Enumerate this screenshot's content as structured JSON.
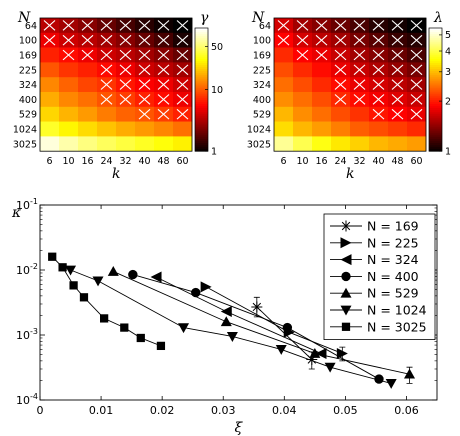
{
  "chart_data": [
    {
      "type": "heatmap",
      "title": "",
      "xlabel": "k",
      "ylabel": "N",
      "colorbar_label": "γ",
      "colorbar_scale": "log",
      "colorbar_range": [
        1,
        100
      ],
      "colorbar_ticks": [
        "1",
        "10",
        "50"
      ],
      "colormap": "hot",
      "x_categories": [
        "6",
        "10",
        "16",
        "24",
        "32",
        "40",
        "48",
        "60"
      ],
      "y_categories": [
        "64",
        "100",
        "169",
        "225",
        "324",
        "400",
        "529",
        "1024",
        "3025"
      ],
      "values": [
        [
          3.5,
          3,
          2.5,
          2,
          1.6,
          1.3,
          1.1,
          1
        ],
        [
          5,
          4,
          3.5,
          3,
          2.5,
          2,
          1.6,
          1.2
        ],
        [
          7,
          6,
          5,
          4,
          3.5,
          3,
          2.5,
          2
        ],
        [
          10,
          8,
          7,
          6,
          5,
          4,
          3.5,
          3
        ],
        [
          14,
          11,
          9,
          8,
          6.5,
          5.5,
          5,
          4
        ],
        [
          18,
          14,
          12,
          10,
          8.5,
          7,
          6,
          5
        ],
        [
          24,
          19,
          16,
          13,
          11,
          10,
          8.5,
          7
        ],
        [
          38,
          30,
          25,
          21,
          18,
          16,
          14,
          12
        ],
        [
          85,
          68,
          56,
          48,
          42,
          37,
          33,
          29
        ]
      ],
      "crossed": [
        [
          1,
          1,
          1,
          1,
          1,
          1,
          1,
          1
        ],
        [
          1,
          1,
          1,
          1,
          1,
          1,
          1,
          1
        ],
        [
          0,
          1,
          1,
          1,
          1,
          1,
          1,
          1
        ],
        [
          0,
          0,
          0,
          1,
          1,
          1,
          1,
          1
        ],
        [
          0,
          0,
          0,
          1,
          1,
          1,
          1,
          1
        ],
        [
          0,
          0,
          0,
          1,
          1,
          1,
          1,
          1
        ],
        [
          0,
          0,
          0,
          0,
          0,
          1,
          1,
          1
        ],
        [
          0,
          0,
          0,
          0,
          0,
          0,
          0,
          0
        ],
        [
          0,
          0,
          0,
          0,
          0,
          0,
          0,
          0
        ]
      ]
    },
    {
      "type": "heatmap",
      "title": "",
      "xlabel": "k",
      "ylabel": "N",
      "colorbar_label": "λ",
      "colorbar_scale": "log",
      "colorbar_range": [
        1,
        5.5
      ],
      "colorbar_ticks": [
        "1",
        "2",
        "3",
        "4",
        "5"
      ],
      "colormap": "hot",
      "x_categories": [
        "6",
        "10",
        "16",
        "24",
        "32",
        "40",
        "48",
        "60"
      ],
      "y_categories": [
        "64",
        "100",
        "169",
        "225",
        "324",
        "400",
        "529",
        "1024",
        "3025"
      ],
      "values": [
        [
          1.7,
          1.5,
          1.4,
          1.3,
          1.2,
          1.1,
          1.05,
          1
        ],
        [
          1.9,
          1.7,
          1.6,
          1.5,
          1.35,
          1.25,
          1.15,
          1.1
        ],
        [
          2.1,
          1.9,
          1.8,
          1.65,
          1.5,
          1.4,
          1.3,
          1.2
        ],
        [
          2.3,
          2.1,
          1.95,
          1.8,
          1.65,
          1.55,
          1.45,
          1.35
        ],
        [
          2.5,
          2.3,
          2.1,
          1.95,
          1.8,
          1.7,
          1.6,
          1.5
        ],
        [
          2.7,
          2.5,
          2.3,
          2.1,
          1.95,
          1.85,
          1.75,
          1.65
        ],
        [
          3,
          2.7,
          2.5,
          2.3,
          2.15,
          2,
          1.9,
          1.8
        ],
        [
          3.3,
          3,
          2.8,
          2.6,
          2.4,
          2.3,
          2.2,
          2.1
        ],
        [
          4.6,
          4.1,
          3.7,
          3.4,
          3.2,
          3,
          2.9,
          2.8
        ]
      ],
      "crossed": [
        [
          1,
          1,
          1,
          1,
          1,
          1,
          1,
          1
        ],
        [
          1,
          1,
          1,
          1,
          1,
          1,
          1,
          1
        ],
        [
          0,
          1,
          1,
          1,
          1,
          1,
          1,
          1
        ],
        [
          0,
          0,
          0,
          1,
          1,
          1,
          1,
          1
        ],
        [
          0,
          0,
          0,
          1,
          1,
          1,
          1,
          1
        ],
        [
          0,
          0,
          0,
          1,
          1,
          1,
          1,
          1
        ],
        [
          0,
          0,
          0,
          0,
          0,
          1,
          1,
          1
        ],
        [
          0,
          0,
          0,
          0,
          0,
          0,
          0,
          0
        ],
        [
          0,
          0,
          0,
          0,
          0,
          0,
          0,
          0
        ]
      ]
    },
    {
      "type": "line",
      "title": "",
      "xlabel": "ξ",
      "ylabel": "κ",
      "xlim": [
        0,
        0.065
      ],
      "ylim": [
        0.0001,
        0.1
      ],
      "yscale": "log",
      "grid": false,
      "legend_position": "top-right",
      "x_ticks": [
        "0",
        "0.01",
        "0.02",
        "0.03",
        "0.04",
        "0.05",
        "0.06"
      ],
      "y_tick_values": [
        0.0001,
        0.001,
        0.01,
        0.1
      ],
      "y_tick_labels": [
        {
          "base": "10",
          "exp": "-4"
        },
        {
          "base": "10",
          "exp": "-3"
        },
        {
          "base": "10",
          "exp": "-2"
        },
        {
          "base": "10",
          "exp": "-1"
        }
      ],
      "series": [
        {
          "name": "N = 169",
          "marker": "asterisk",
          "x": [
            0.0355,
            0.0445
          ],
          "y": [
            0.0027,
            0.00042
          ],
          "err": [
            [
              0.0355,
              0.0019,
              0.0038
            ],
            [
              0.0445,
              0.0003,
              0.00055
            ]
          ]
        },
        {
          "name": "N = 225",
          "marker": "triangle-right",
          "x": [
            0.0272,
            0.0408,
            0.0495
          ],
          "y": [
            0.0055,
            0.0011,
            0.00052
          ],
          "err": [
            [
              0.0495,
              0.0004,
              0.00065
            ]
          ]
        },
        {
          "name": "N = 324",
          "marker": "triangle-left",
          "x": [
            0.019,
            0.0305,
            0.046
          ],
          "y": [
            0.0078,
            0.0023,
            0.00052
          ],
          "err": []
        },
        {
          "name": "N = 400",
          "marker": "circle",
          "x": [
            0.0152,
            0.0255,
            0.0405,
            0.0555
          ],
          "y": [
            0.0085,
            0.0045,
            0.0013,
            0.00021
          ],
          "err": []
        },
        {
          "name": "N = 529",
          "marker": "triangle-up",
          "x": [
            0.012,
            0.0305,
            0.045,
            0.0605
          ],
          "y": [
            0.0095,
            0.0016,
            0.00052,
            0.00025
          ],
          "err": [
            [
              0.0605,
              0.00018,
              0.00032
            ]
          ]
        },
        {
          "name": "N = 1024",
          "marker": "triangle-down",
          "x": [
            0.005,
            0.0095,
            0.0235,
            0.0315,
            0.0395,
            0.0475,
            0.0575
          ],
          "y": [
            0.01,
            0.0068,
            0.0013,
            0.00095,
            0.0006,
            0.00032,
            0.00018
          ],
          "err": []
        },
        {
          "name": "N = 3025",
          "marker": "square",
          "x": [
            0.002,
            0.0037,
            0.0055,
            0.0072,
            0.0105,
            0.0138,
            0.0165,
            0.0198
          ],
          "y": [
            0.016,
            0.011,
            0.0058,
            0.0038,
            0.0018,
            0.0013,
            0.0009,
            0.00068
          ],
          "err": []
        }
      ]
    }
  ]
}
